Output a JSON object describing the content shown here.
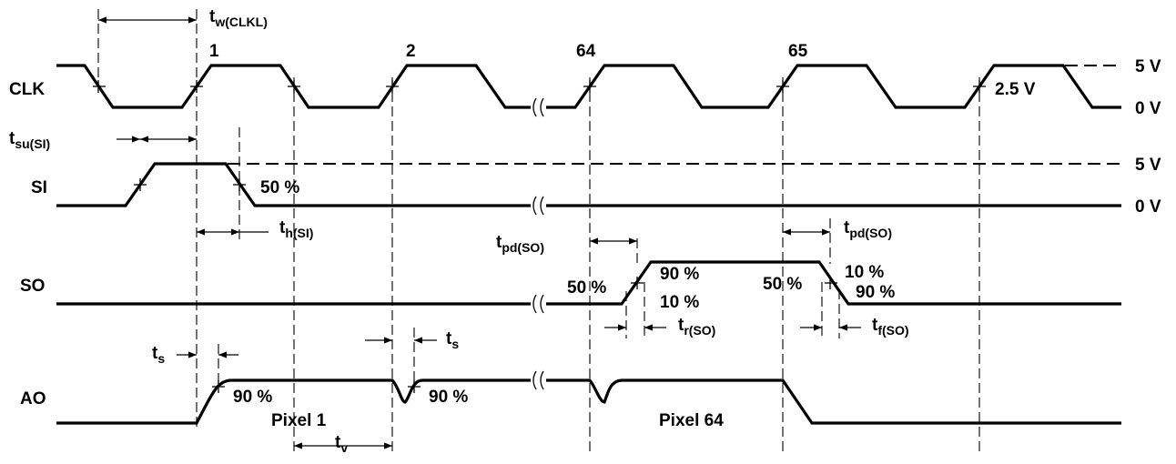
{
  "signals": {
    "clk": "CLK",
    "si": "SI",
    "so": "SO",
    "ao": "AO"
  },
  "levels": {
    "clk_high": "5 V",
    "clk_low": "0 V",
    "si_high": "5 V",
    "si_low": "0 V",
    "threshold": "2.5 V"
  },
  "pulses": [
    "1",
    "2",
    "64",
    "65"
  ],
  "timing": {
    "tw_clkl": {
      "main": "t",
      "sub": "w(CLKL)"
    },
    "tsu_si": {
      "main": "t",
      "sub": "su(SI)"
    },
    "th_si": {
      "main": "t",
      "sub": "h(SI)"
    },
    "tpd_so_left": {
      "main": "t",
      "sub": "pd(SO)"
    },
    "tpd_so_right": {
      "main": "t",
      "sub": "pd(SO)"
    },
    "tr_so": {
      "main": "t",
      "sub": "r(SO)"
    },
    "tf_so": {
      "main": "t",
      "sub": "f(SO)"
    },
    "ts_left": {
      "main": "t",
      "sub": "s"
    },
    "ts_right": {
      "main": "t",
      "sub": "s"
    },
    "tv": {
      "main": "t",
      "sub": "v"
    }
  },
  "percentages": {
    "si_50": "50 %",
    "so_rise_50": "50 %",
    "so_rise_90": "90 %",
    "so_rise_10": "10 %",
    "so_fall_50": "50 %",
    "so_fall_10": "10 %",
    "so_fall_90": "90 %",
    "ao_90_a": "90 %",
    "ao_90_b": "90 %"
  },
  "pixels": {
    "pixel1": "Pixel 1",
    "pixel64": "Pixel 64"
  }
}
